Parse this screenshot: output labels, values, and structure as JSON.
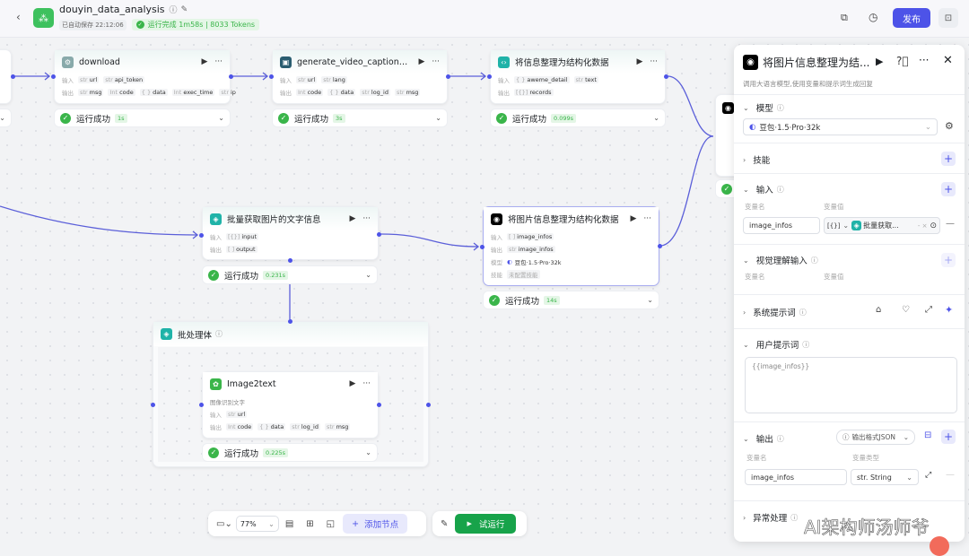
{
  "header": {
    "title": "douyin_data_analysis",
    "autosave": "已自动保存 22:12:06",
    "run_status": "运行完成 1m58s | 8033 Tokens",
    "publish": "发布",
    "accent": "#4d53e8",
    "icons": [
      "back-chevron",
      "info-icon",
      "edit-icon",
      "copy-icon",
      "history-icon",
      "panel-icon"
    ]
  },
  "labels": {
    "in": "输入",
    "out": "输出",
    "model": "模型",
    "skill": "技能"
  },
  "nodes": {
    "download": {
      "title": "download",
      "inputs": [
        [
          "str",
          "url"
        ],
        [
          "str",
          "api_token"
        ]
      ],
      "outputs": [
        [
          "str",
          "msg"
        ],
        [
          "Int",
          "code"
        ],
        [
          "{ }",
          "data"
        ],
        [
          "Int",
          "exec_time"
        ],
        [
          "str",
          "ip"
        ]
      ],
      "status": "运行成功",
      "time": "1s"
    },
    "captions": {
      "title": "generate_video_captions_s...",
      "inputs": [
        [
          "str",
          "url"
        ],
        [
          "str",
          "lang"
        ]
      ],
      "outputs": [
        [
          "Int",
          "code"
        ],
        [
          "{ }",
          "data"
        ],
        [
          "str",
          "log_id"
        ],
        [
          "str",
          "msg"
        ]
      ],
      "status": "运行成功",
      "time": "3s"
    },
    "struct": {
      "title": "将信息整理为结构化数据",
      "inputs": [
        [
          "{ }",
          "aweme_detail"
        ],
        [
          "str",
          "text"
        ]
      ],
      "outputs": [
        [
          "[{}]",
          "records"
        ]
      ],
      "status": "运行成功",
      "time": "0.099s"
    },
    "batchget": {
      "title": "批量获取图片的文字信息",
      "inputs": [
        [
          "[{}]",
          "input"
        ]
      ],
      "outputs": [
        [
          "[ ]",
          "output"
        ]
      ],
      "status": "运行成功",
      "time": "0.231s"
    },
    "llm": {
      "title": "将图片信息整理为结构化数据",
      "inputs": [
        [
          "[ ]",
          "image_infos"
        ]
      ],
      "outputs": [
        [
          "str",
          "image_infos"
        ]
      ],
      "model": "豆包·1.5·Pro·32k",
      "skill": "未配置技能",
      "status": "运行成功",
      "time": "14s"
    },
    "batch": {
      "title": "批处理体"
    },
    "image2text": {
      "title": "Image2text",
      "desc": "图像识别文字",
      "inputs": [
        [
          "str",
          "url"
        ]
      ],
      "outputs": [
        [
          "Int",
          "code"
        ],
        [
          "{ }",
          "data"
        ],
        [
          "str",
          "log_id"
        ],
        [
          "str",
          "msg"
        ]
      ],
      "status": "运行成功",
      "time": "0.225s"
    }
  },
  "panel": {
    "title": "将图片信息整理为结...",
    "desc": "调用大语言模型,使用变量和提示词生成回复",
    "model": {
      "label": "模型",
      "value": "豆包·1.5·Pro·32k"
    },
    "skill": {
      "label": "技能"
    },
    "input": {
      "label": "输入",
      "col_name": "变量名",
      "col_value": "变量值",
      "name": "image_infos",
      "type": "[{}]",
      "ref": "批量获取..."
    },
    "vision": {
      "label": "视觉理解输入",
      "col_name": "变量名",
      "col_value": "变量值"
    },
    "system": {
      "label": "系统提示词"
    },
    "user": {
      "label": "用户提示词",
      "value": "{{image_infos}}"
    },
    "output": {
      "label": "输出",
      "format": "输出格式JSON",
      "col_name": "变量名",
      "col_type": "变量类型",
      "name": "image_infos",
      "type": "str. String"
    },
    "error": {
      "label": "异常处理"
    }
  },
  "toolbar": {
    "zoom": "77%",
    "add_node": "添加节点",
    "test_run": "试运行"
  },
  "watermark": "AI架构师汤师爷"
}
